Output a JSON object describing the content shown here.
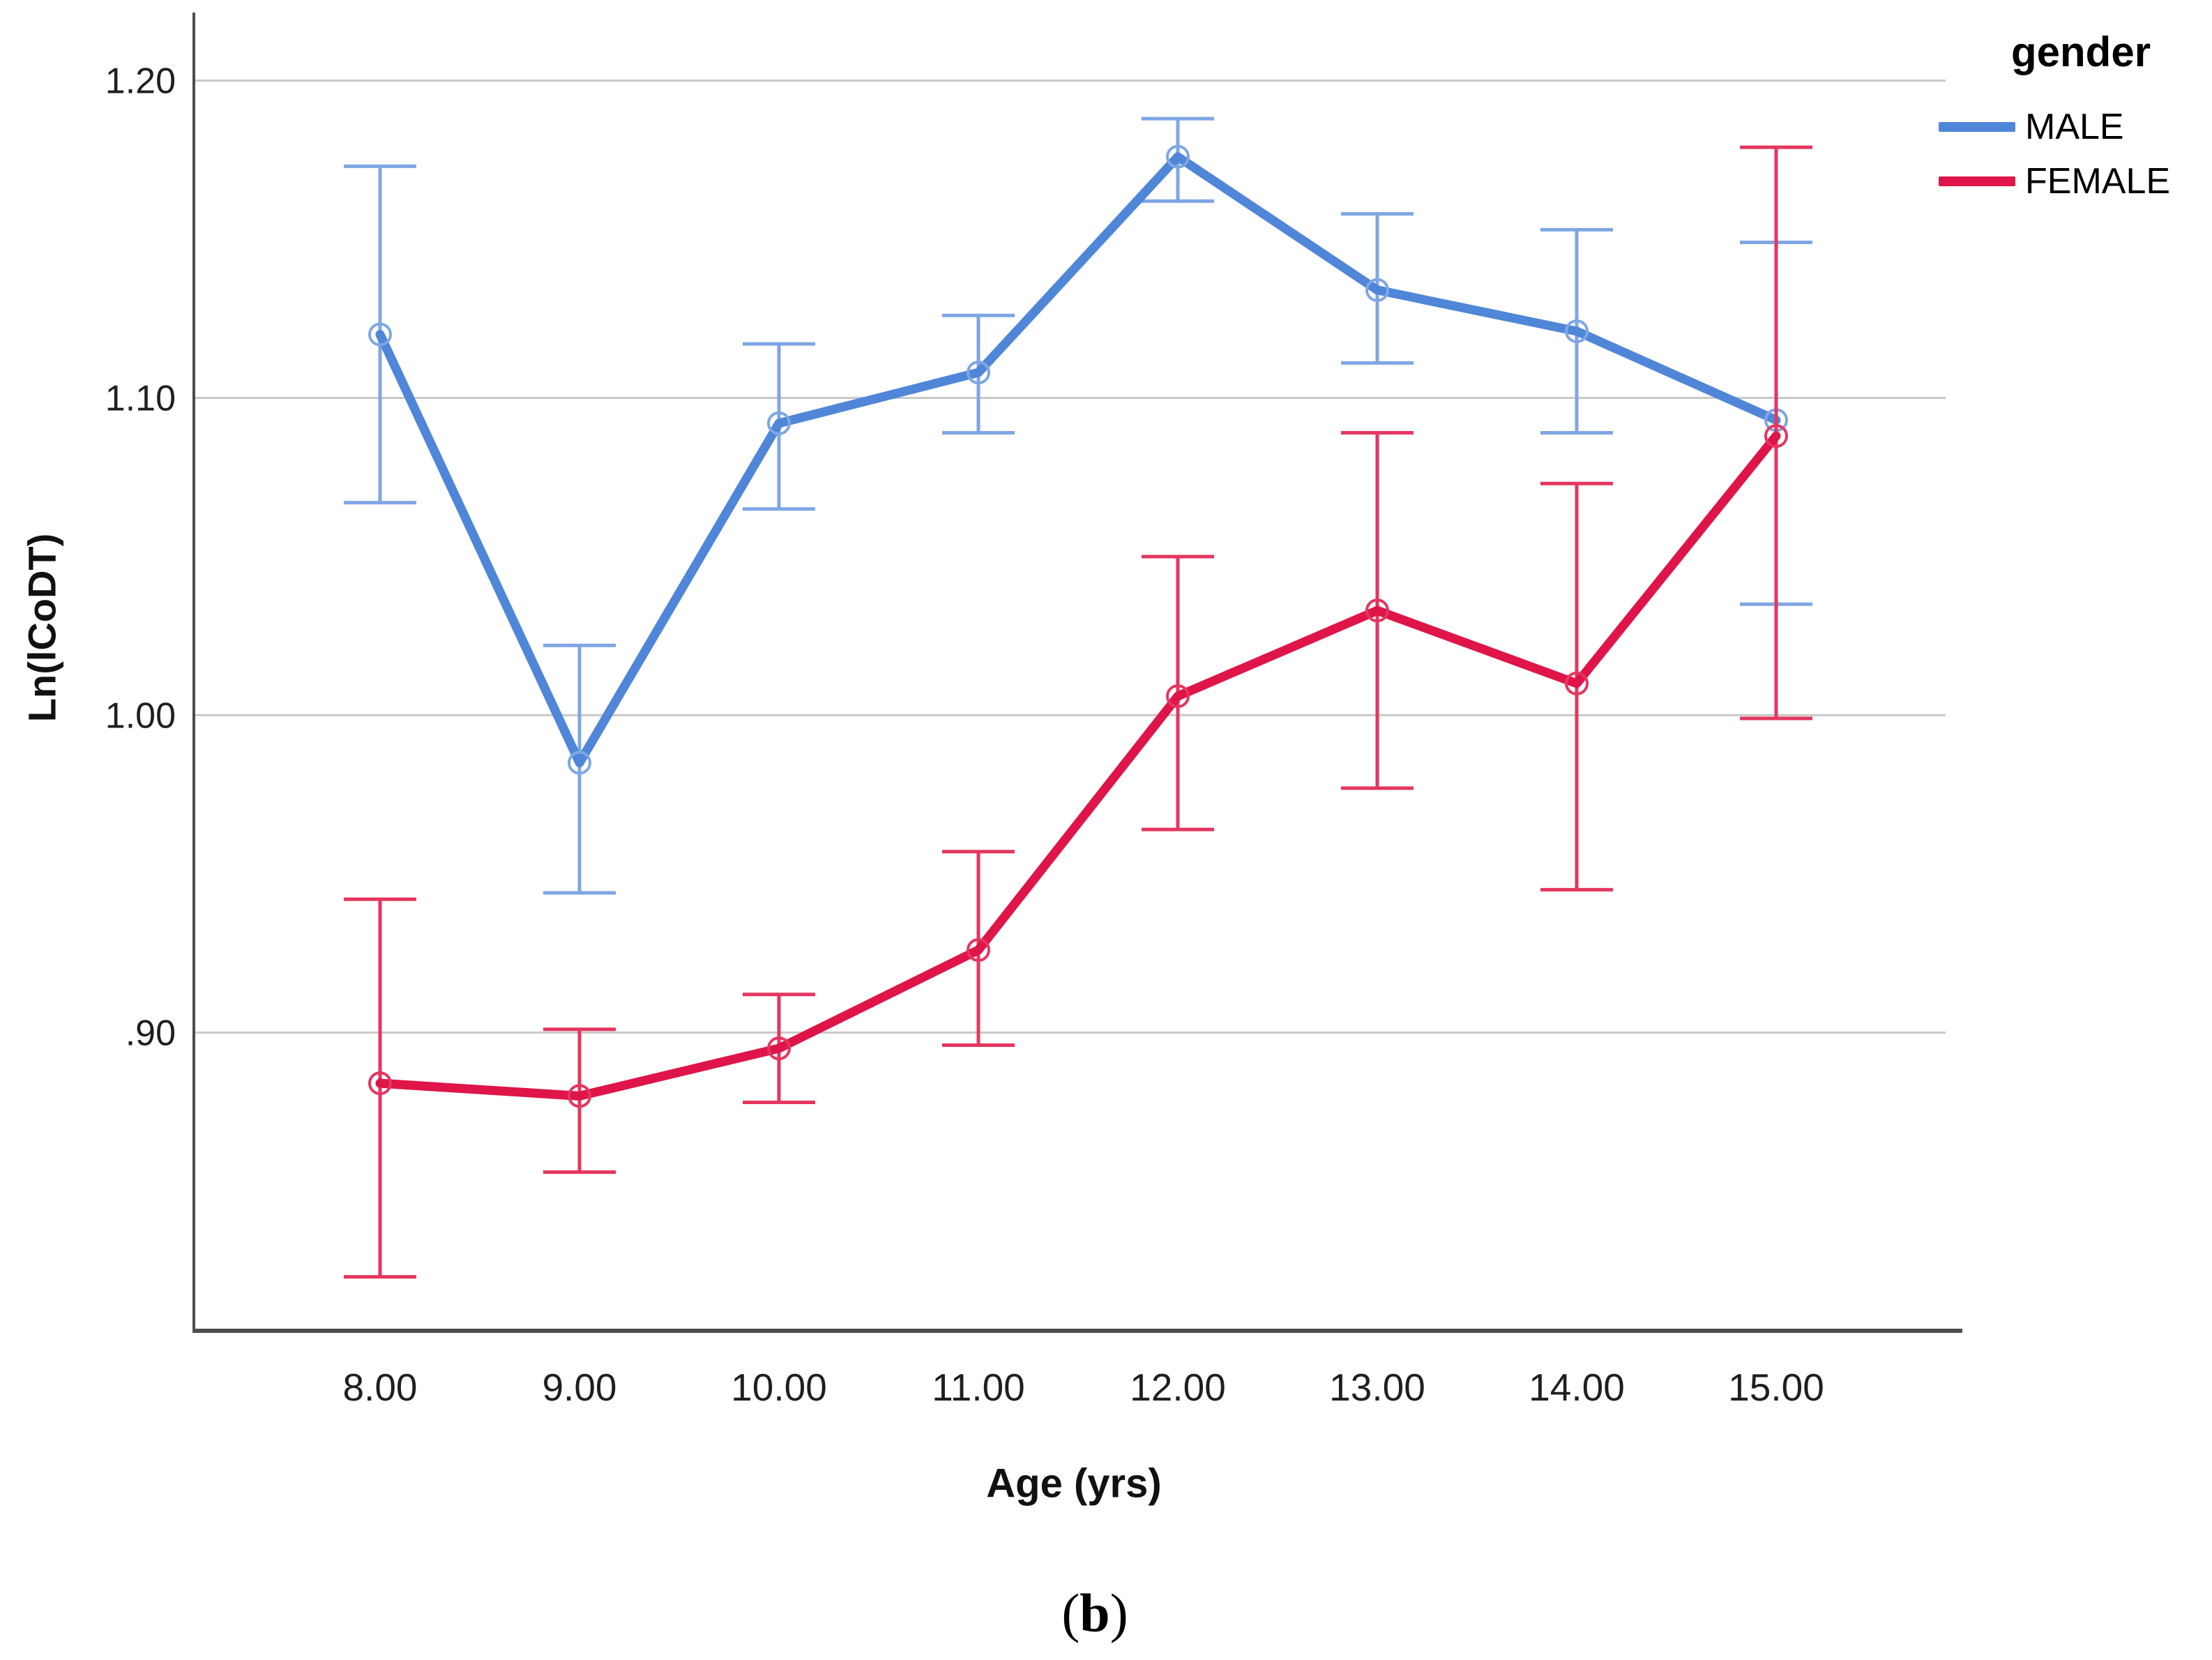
{
  "figure": {
    "caption_prefix": "(",
    "caption_label": "b",
    "caption_suffix": ")"
  },
  "chart_data": {
    "type": "line",
    "title": "",
    "xlabel": "Age (yrs)",
    "ylabel": "Ln(lCoDT)",
    "legend_title": "gender",
    "legend_position": "top-right-outside",
    "grid": "horizontal",
    "x": [
      8,
      9,
      10,
      11,
      12,
      13,
      14,
      15
    ],
    "x_tick_labels": [
      "8.00",
      "9.00",
      "10.00",
      "11.00",
      "12.00",
      "13.00",
      "14.00",
      "15.00"
    ],
    "y_ticks": [
      1.2,
      1.1,
      1.0,
      0.9
    ],
    "y_tick_labels": [
      "1.20",
      "1.10",
      "1.00",
      ".90"
    ],
    "ylim": [
      0.806,
      1.221
    ],
    "colors": {
      "male_line": "#4F86D8",
      "male_error": "#7FA6E4",
      "female_line": "#DF1549",
      "female_error": "#E4365F",
      "gridline": "#C9C9C9",
      "axis": "#4D4D4D"
    },
    "series": [
      {
        "name": "MALE",
        "color": "#4F86D8",
        "error_color": "#7FA6E4",
        "means": [
          1.12,
          0.985,
          1.092,
          1.108,
          1.176,
          1.134,
          1.121,
          1.093
        ],
        "ci_low": [
          1.067,
          0.944,
          1.065,
          1.089,
          1.162,
          1.111,
          1.089,
          1.035
        ],
        "ci_high": [
          1.173,
          1.022,
          1.117,
          1.126,
          1.188,
          1.158,
          1.153,
          1.149
        ]
      },
      {
        "name": "FEMALE",
        "color": "#DF1549",
        "error_color": "#E4365F",
        "means": [
          0.884,
          0.88,
          0.895,
          0.926,
          1.006,
          1.033,
          1.01,
          1.088
        ],
        "ci_low": [
          0.823,
          0.856,
          0.878,
          0.896,
          0.964,
          0.977,
          0.945,
          0.999
        ],
        "ci_high": [
          0.942,
          0.901,
          0.912,
          0.957,
          1.05,
          1.089,
          1.073,
          1.179
        ]
      }
    ]
  }
}
